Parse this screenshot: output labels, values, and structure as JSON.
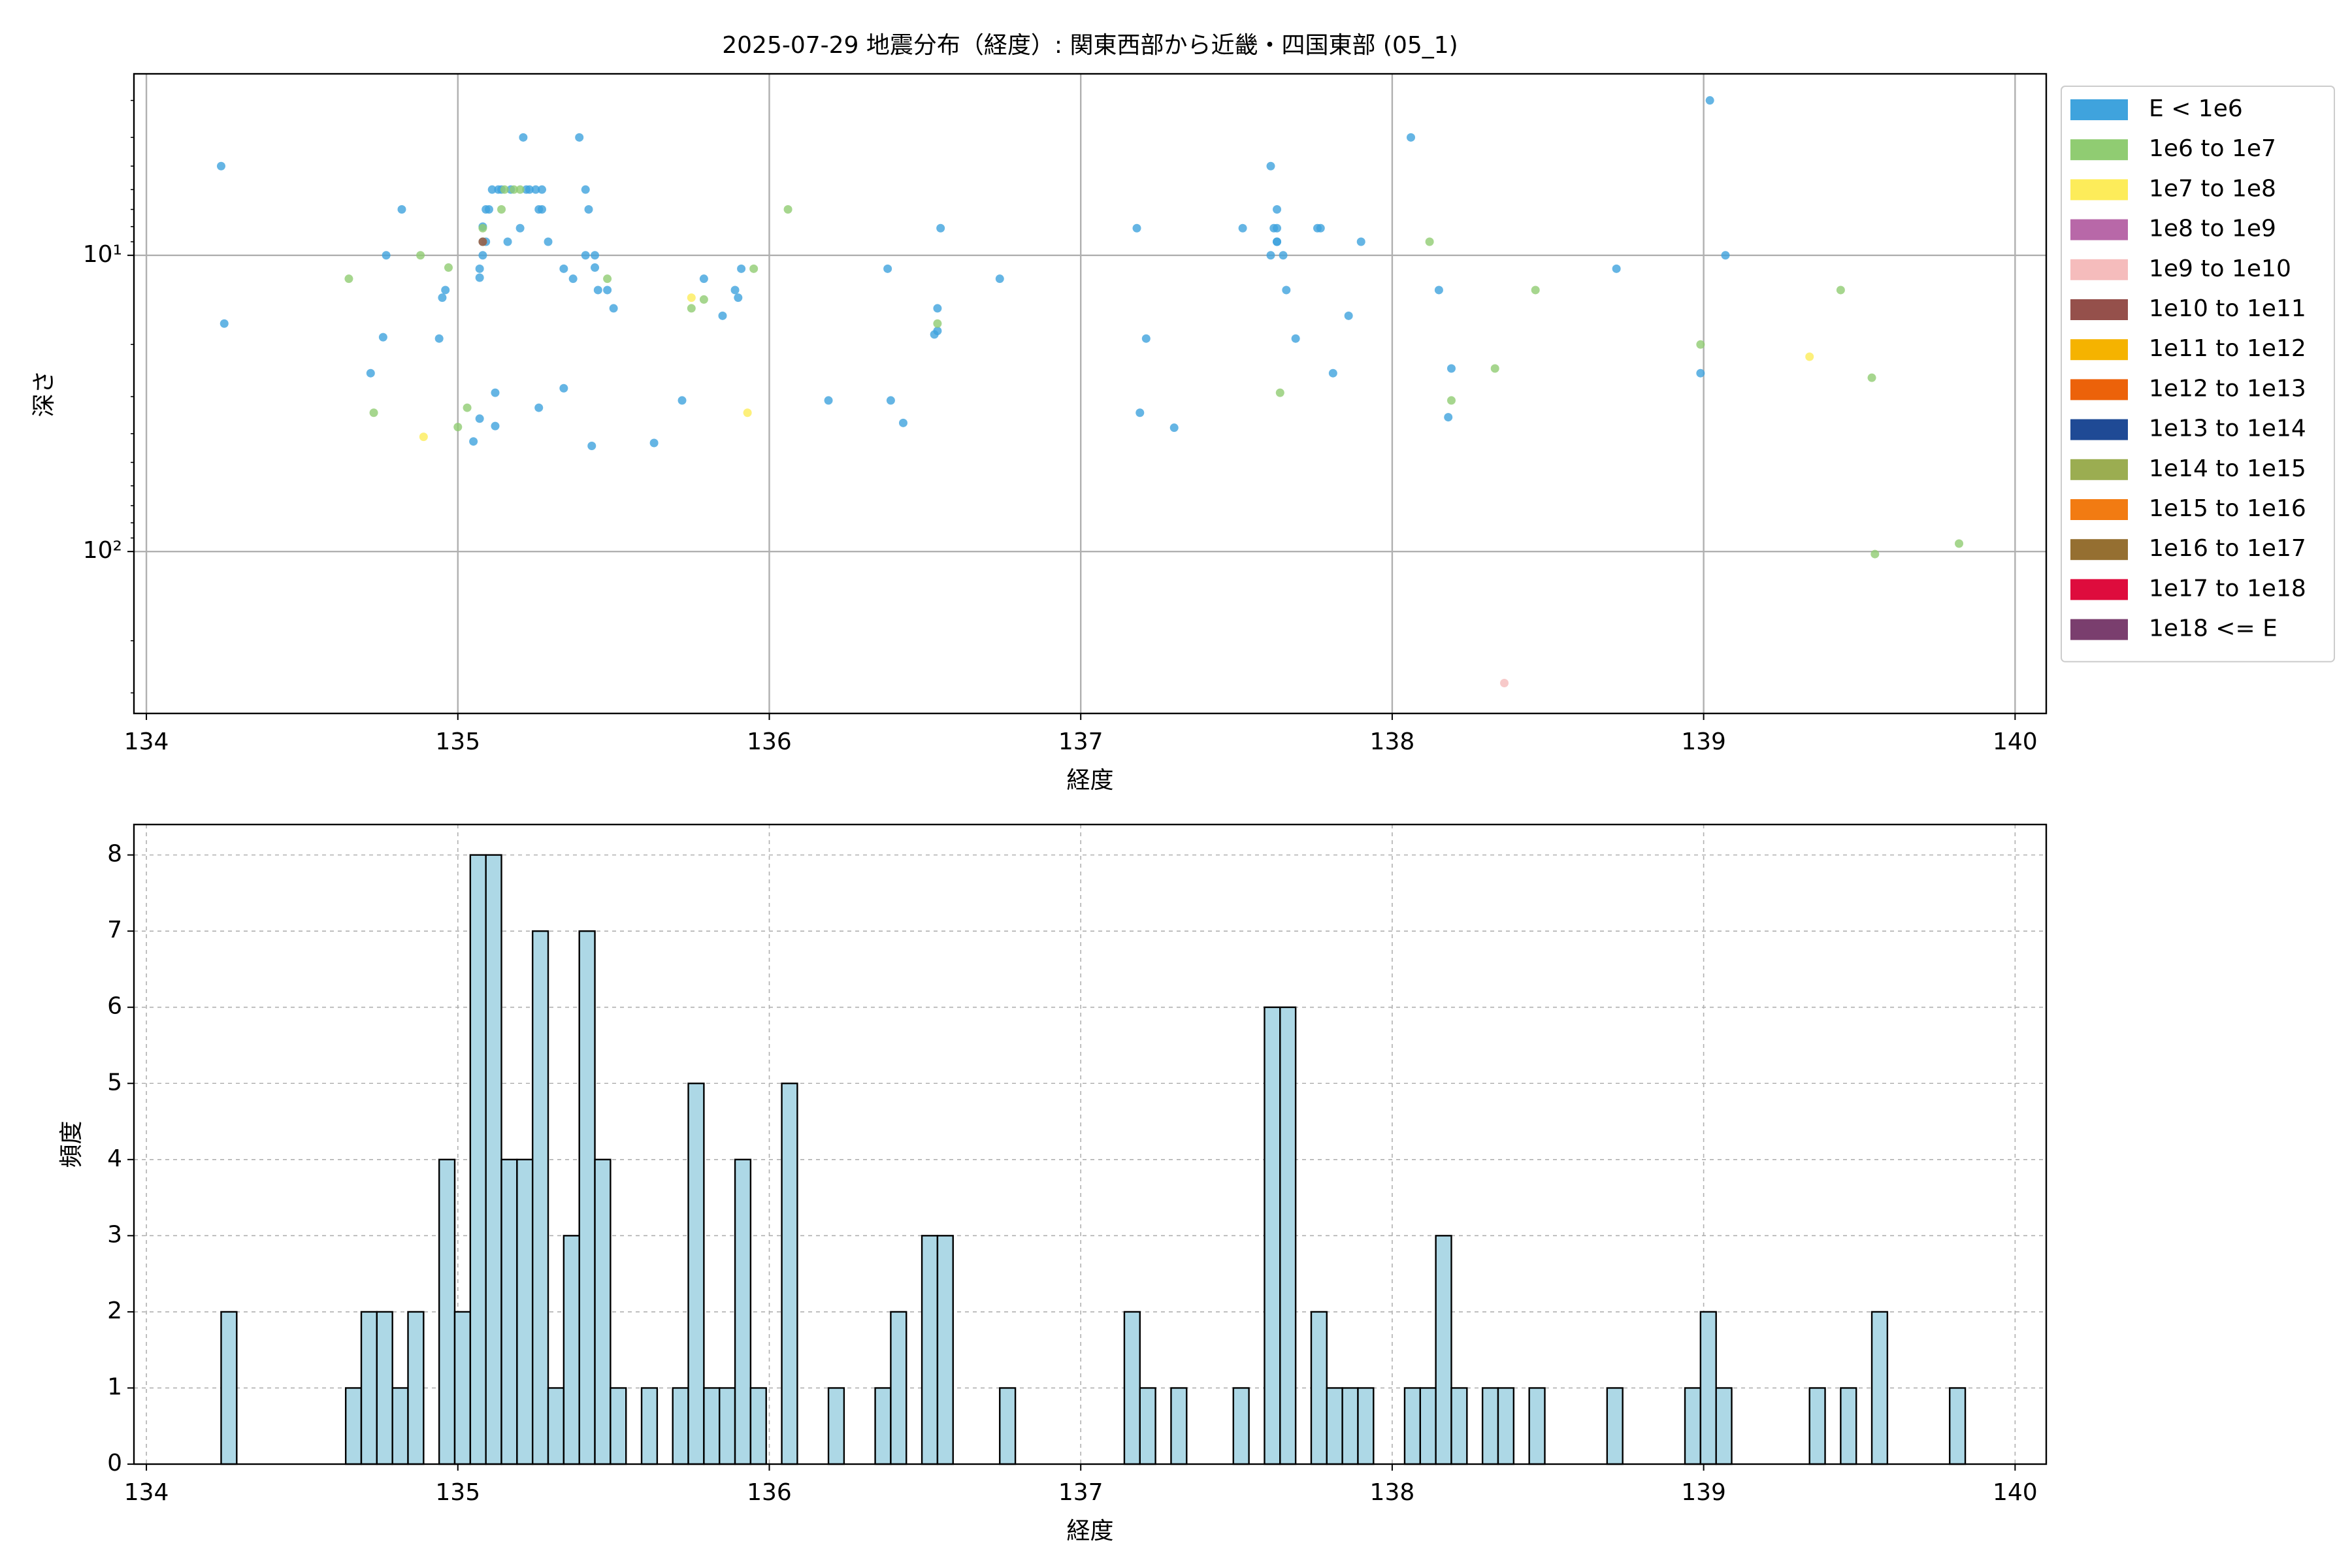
{
  "chart_data": [
    {
      "type": "scatter",
      "title": "2025-07-29 地震分布（経度）: 関東西部から近畿・四国東部 (05_1)",
      "x_label": "経度",
      "y_label": "深さ",
      "xlim": [
        133.96,
        140.1
      ],
      "xticks": [
        134,
        135,
        136,
        137,
        138,
        139,
        140
      ],
      "ylim": [
        2.44,
        352
      ],
      "log_y": true,
      "invert_y": true,
      "yticks": [
        {
          "value": 10,
          "label": "10¹"
        },
        {
          "value": 100,
          "label": "10²"
        }
      ],
      "yminorticks": [
        3,
        4,
        5,
        6,
        7,
        8,
        9,
        20,
        30,
        40,
        50,
        60,
        70,
        80,
        90,
        200,
        300
      ],
      "grid": true,
      "grid_style": "solid",
      "legend": "outside upper right",
      "series": [
        {
          "name": "E < 1e6",
          "color": "#3fa3dd",
          "x": [
            134.24,
            134.25,
            134.72,
            134.76,
            134.77,
            134.82,
            134.95,
            134.96,
            134.94,
            135.05,
            135.07,
            135.07,
            135.07,
            135.08,
            135.08,
            135.09,
            135.09,
            135.1,
            135.11,
            135.12,
            135.13,
            135.12,
            135.14,
            135.16,
            135.17,
            135.2,
            135.21,
            135.22,
            135.23,
            135.25,
            135.26,
            135.26,
            135.27,
            135.27,
            135.29,
            135.34,
            135.34,
            135.37,
            135.39,
            135.41,
            135.42,
            135.41,
            135.43,
            135.44,
            135.44,
            135.45,
            135.48,
            135.5,
            135.63,
            135.72,
            135.79,
            135.85,
            135.89,
            135.9,
            135.91,
            136.19,
            136.38,
            136.39,
            136.43,
            136.54,
            136.54,
            136.53,
            136.55,
            136.74,
            137.18,
            137.21,
            137.19,
            137.3,
            137.52,
            137.61,
            137.61,
            137.62,
            137.63,
            137.63,
            137.63,
            137.63,
            137.65,
            137.66,
            137.69,
            137.76,
            137.77,
            137.86,
            137.81,
            137.9,
            138.06,
            138.15,
            138.18,
            138.19,
            138.72,
            138.99,
            139.02,
            139.07
          ],
          "y": [
            5.0,
            17.0,
            25.0,
            18.9,
            10.0,
            7.0,
            13.9,
            13.1,
            19.1,
            42.5,
            11.9,
            11.1,
            35.6,
            8.0,
            10.0,
            9.0,
            7.0,
            7.0,
            6.0,
            37.7,
            6.0,
            29.1,
            6.0,
            9.0,
            6.0,
            8.1,
            4.0,
            6.0,
            6.0,
            6.0,
            32.7,
            7.0,
            7.0,
            6.0,
            9.0,
            28.1,
            11.1,
            12.0,
            4.0,
            6.0,
            7.0,
            10.0,
            44.0,
            10.0,
            11.0,
            13.1,
            13.1,
            15.1,
            43.0,
            30.9,
            12.0,
            16.0,
            13.1,
            13.9,
            11.1,
            30.9,
            11.1,
            30.9,
            36.8,
            18.0,
            15.1,
            18.5,
            8.1,
            12.0,
            8.1,
            19.1,
            34.0,
            38.2,
            8.1,
            5.0,
            10.0,
            8.1,
            9.0,
            8.1,
            7.0,
            9.0,
            10.0,
            13.1,
            19.1,
            8.1,
            8.1,
            16.0,
            25.0,
            9.0,
            4.0,
            13.1,
            35.2,
            24.1,
            11.1,
            25.0,
            3.0,
            10.0
          ]
        },
        {
          "name": "1e6 to 1e7",
          "color": "#90cc72",
          "x": [
            134.65,
            134.73,
            134.88,
            134.97,
            135.0,
            135.03,
            135.08,
            135.08,
            135.14,
            135.15,
            135.18,
            135.2,
            135.48,
            135.75,
            135.79,
            135.95,
            136.06,
            136.54,
            137.64,
            138.12,
            138.19,
            138.33,
            138.46,
            138.99,
            139.44,
            139.54,
            139.55,
            139.82
          ],
          "y": [
            12.0,
            34.0,
            10.0,
            11.0,
            38.0,
            32.7,
            9.0,
            8.1,
            7.0,
            6.0,
            6.0,
            6.0,
            12.0,
            15.1,
            14.1,
            11.1,
            7.0,
            17.0,
            29.1,
            9.0,
            30.9,
            24.1,
            13.1,
            20.0,
            13.1,
            25.9,
            102,
            94
          ]
        },
        {
          "name": "1e7 to 1e8",
          "color": "#fdec5a",
          "x": [
            134.89,
            135.75,
            135.93,
            139.34
          ],
          "y": [
            41,
            13.9,
            34,
            22.0
          ]
        },
        {
          "name": "1e8 to 1e9",
          "color": "#b868a8",
          "x": [],
          "y": []
        },
        {
          "name": "1e9 to 1e10",
          "color": "#f5bcbc",
          "x": [
            138.36
          ],
          "y": [
            278
          ]
        },
        {
          "name": "1e10 to 1e11",
          "color": "#95504b",
          "x": [
            135.08
          ],
          "y": [
            9.0
          ]
        },
        {
          "name": "1e11 to 1e12",
          "color": "#f5b300",
          "x": [],
          "y": []
        },
        {
          "name": "1e12 to 1e13",
          "color": "#ec620a",
          "x": [],
          "y": []
        },
        {
          "name": "1e13 to 1e14",
          "color": "#1f4a95",
          "x": [],
          "y": []
        },
        {
          "name": "1e14 to 1e15",
          "color": "#9bad51",
          "x": [],
          "y": []
        },
        {
          "name": "1e15 to 1e16",
          "color": "#f27b12",
          "x": [],
          "y": []
        },
        {
          "name": "1e16 to 1e17",
          "color": "#956f31",
          "x": [],
          "y": []
        },
        {
          "name": "1e17 to 1e18",
          "color": "#de0c3d",
          "x": [],
          "y": []
        },
        {
          "name": "1e18 <= E",
          "color": "#7a3e6e",
          "x": [],
          "y": []
        }
      ]
    },
    {
      "type": "histogram",
      "x_label": "経度",
      "y_label": "頻度",
      "xlim": [
        133.96,
        140.1
      ],
      "xticks": [
        134,
        135,
        136,
        137,
        138,
        139,
        140
      ],
      "ylim": [
        0,
        8.4
      ],
      "yticks": [
        0,
        1,
        2,
        3,
        4,
        5,
        6,
        7,
        8
      ],
      "grid": true,
      "grid_style": "dashed",
      "color": "#add8e6",
      "edgecolor": "#000000",
      "bins": [
        134.24,
        134.29,
        134.34,
        134.39,
        134.44,
        134.49,
        134.54,
        134.59,
        134.64,
        134.69,
        134.74,
        134.79,
        134.84,
        134.89,
        134.94,
        134.99,
        135.04,
        135.09,
        135.14,
        135.19,
        135.24,
        135.29,
        135.34,
        135.39,
        135.44,
        135.49,
        135.54,
        135.59,
        135.64,
        135.69,
        135.74,
        135.79,
        135.84,
        135.89,
        135.94,
        135.99,
        136.04,
        136.09,
        136.14,
        136.19,
        136.24,
        136.29,
        136.34,
        136.39,
        136.44,
        136.49,
        136.54,
        136.59,
        136.64,
        136.69,
        136.74,
        136.79,
        136.84,
        136.89,
        136.94,
        136.99,
        137.04,
        137.09,
        137.14,
        137.19,
        137.24,
        137.29,
        137.34,
        137.39,
        137.44,
        137.49,
        137.54,
        137.59,
        137.64,
        137.69,
        137.74,
        137.79,
        137.84,
        137.89,
        137.94,
        137.99,
        138.04,
        138.09,
        138.14,
        138.19,
        138.24,
        138.29,
        138.34,
        138.39,
        138.44,
        138.49,
        138.54,
        138.59,
        138.64,
        138.69,
        138.74,
        138.79,
        138.84,
        138.89,
        138.94,
        138.99,
        139.04,
        139.09,
        139.14,
        139.19,
        139.24,
        139.29,
        139.34,
        139.39,
        139.44,
        139.49,
        139.54,
        139.59,
        139.64,
        139.69,
        139.74,
        139.79,
        139.84
      ],
      "values": [
        2,
        0,
        0,
        0,
        0,
        0,
        0,
        0,
        1,
        2,
        2,
        1,
        2,
        0,
        4,
        2,
        8,
        8,
        4,
        4,
        7,
        1,
        3,
        7,
        4,
        1,
        0,
        1,
        0,
        1,
        5,
        1,
        1,
        4,
        1,
        0,
        5,
        0,
        0,
        1,
        0,
        0,
        1,
        2,
        0,
        3,
        3,
        0,
        0,
        0,
        1,
        0,
        0,
        0,
        0,
        0,
        0,
        0,
        2,
        1,
        0,
        1,
        0,
        0,
        0,
        1,
        0,
        6,
        6,
        0,
        2,
        1,
        1,
        1,
        0,
        0,
        1,
        1,
        3,
        1,
        0,
        1,
        1,
        0,
        1,
        0,
        0,
        0,
        0,
        1,
        0,
        0,
        0,
        0,
        1,
        2,
        1,
        0,
        0,
        0,
        0,
        0,
        1,
        0,
        1,
        0,
        2,
        0,
        0,
        0,
        0,
        1
      ]
    }
  ]
}
